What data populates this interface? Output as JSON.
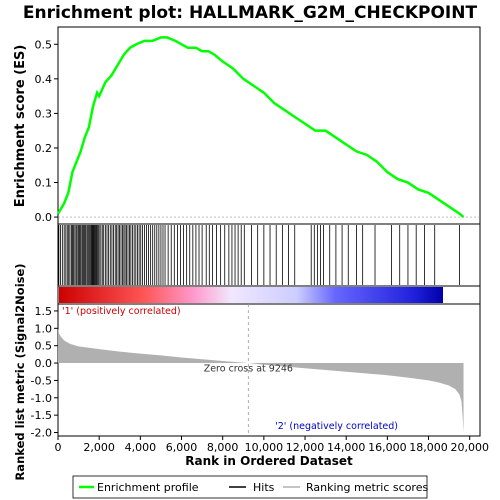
{
  "chart_data": {
    "type": "line",
    "title": "Enrichment plot: HALLMARK_G2M_CHECKPOINT",
    "es_panel": {
      "ylabel": "Enrichment score (ES)",
      "ylim": [
        -0.02,
        0.55
      ],
      "yticks": [
        "0.0",
        "0.1",
        "0.2",
        "0.3",
        "0.4",
        "0.5"
      ],
      "ytick_values": [
        0.0,
        0.1,
        0.2,
        0.3,
        0.4,
        0.5
      ],
      "line_color": "#00ff00",
      "x": [
        0,
        100,
        300,
        500,
        700,
        900,
        1100,
        1300,
        1500,
        1700,
        1900,
        2000,
        2300,
        2600,
        2900,
        3200,
        3500,
        3800,
        4200,
        4600,
        5000,
        5300,
        5700,
        6000,
        6300,
        6700,
        7000,
        7300,
        7600,
        8000,
        8500,
        9000,
        9500,
        10000,
        10500,
        11000,
        11500,
        12000,
        12500,
        13000,
        13500,
        14000,
        14500,
        15000,
        15500,
        16000,
        16500,
        17000,
        17500,
        18000,
        18500,
        19000,
        19500,
        19700
      ],
      "y": [
        0.01,
        0.02,
        0.04,
        0.07,
        0.13,
        0.16,
        0.19,
        0.23,
        0.26,
        0.32,
        0.36,
        0.35,
        0.39,
        0.41,
        0.44,
        0.47,
        0.49,
        0.5,
        0.51,
        0.51,
        0.52,
        0.52,
        0.51,
        0.5,
        0.49,
        0.49,
        0.48,
        0.48,
        0.47,
        0.45,
        0.43,
        0.4,
        0.38,
        0.36,
        0.33,
        0.31,
        0.29,
        0.27,
        0.25,
        0.25,
        0.23,
        0.21,
        0.19,
        0.18,
        0.16,
        0.13,
        0.11,
        0.1,
        0.08,
        0.07,
        0.05,
        0.03,
        0.01,
        0.0
      ]
    },
    "hits_panel": {
      "hit_positions": [
        40,
        120,
        210,
        300,
        380,
        450,
        520,
        580,
        650,
        700,
        760,
        820,
        880,
        930,
        990,
        1040,
        1100,
        1160,
        1210,
        1260,
        1310,
        1360,
        1420,
        1470,
        1520,
        1570,
        1620,
        1660,
        1700,
        1740,
        1780,
        1820,
        1860,
        1900,
        1950,
        2000,
        2080,
        2150,
        2220,
        2300,
        2380,
        2460,
        2540,
        2620,
        2700,
        2780,
        2850,
        2920,
        2990,
        3060,
        3130,
        3200,
        3260,
        3330,
        3400,
        3470,
        3540,
        3620,
        3700,
        3780,
        3860,
        3940,
        4020,
        4100,
        4200,
        4300,
        4400,
        4500,
        4600,
        4700,
        4800,
        4900,
        5000,
        5100,
        5200,
        5350,
        5500,
        5650,
        5800,
        5950,
        6100,
        6250,
        6400,
        6550,
        6700,
        6850,
        7000,
        7200,
        7350,
        7500,
        7700,
        7900,
        8100,
        8300,
        8450,
        8600,
        8750,
        8900,
        9050,
        9400,
        9700,
        10000,
        10300,
        10600,
        10900,
        11200,
        11500,
        12300,
        12450,
        12600,
        12750,
        12900,
        13200,
        13500,
        13800,
        14100,
        14500,
        14800,
        15400,
        16200,
        16600,
        17000,
        17400,
        17800,
        18300,
        19500
      ]
    },
    "rank_panel": {
      "ylabel": "Ranked list metric (Signal2Noise)",
      "ylim": [
        -2.1,
        1.7
      ],
      "yticks": [
        "-2.0",
        "-1.5",
        "-1.0",
        "-0.5",
        "0.0",
        "0.5",
        "1.0",
        "1.5"
      ],
      "ytick_values": [
        -2.0,
        -1.5,
        -1.0,
        -0.5,
        0.0,
        0.5,
        1.0,
        1.5
      ],
      "x": [
        0,
        50,
        150,
        300,
        600,
        1000,
        2000,
        3000,
        4000,
        5000,
        6000,
        7000,
        8000,
        9246,
        10000,
        11000,
        12000,
        13000,
        14000,
        15000,
        16000,
        17000,
        18000,
        18500,
        19000,
        19300,
        19500,
        19600,
        19650,
        19700
      ],
      "y": [
        1.0,
        0.85,
        0.75,
        0.65,
        0.55,
        0.48,
        0.4,
        0.33,
        0.27,
        0.22,
        0.16,
        0.11,
        0.06,
        0.0,
        -0.05,
        -0.1,
        -0.15,
        -0.2,
        -0.25,
        -0.3,
        -0.35,
        -0.42,
        -0.5,
        -0.56,
        -0.65,
        -0.75,
        -0.9,
        -1.1,
        -1.5,
        -2.0
      ],
      "fill_color": "#b0b0b0",
      "zero_cross_label": "Zero cross at 9246",
      "zero_cross_x": 9246,
      "positive_label": "'1' (positively correlated)",
      "negative_label": "'2' (negatively correlated)",
      "positive_color": "#cc0000",
      "negative_color": "#0000cc"
    },
    "xlabel": "Rank in Ordered Dataset",
    "xlim": [
      0,
      20500
    ],
    "xticks": [
      "0",
      "2,000",
      "4,000",
      "6,000",
      "8,000",
      "10,000",
      "12,000",
      "14,000",
      "16,000",
      "18,000",
      "20,000"
    ],
    "xtick_values": [
      0,
      2000,
      4000,
      6000,
      8000,
      10000,
      12000,
      14000,
      16000,
      18000,
      20000
    ],
    "legend": [
      {
        "label": "Enrichment profile",
        "color": "#00ff00"
      },
      {
        "label": "Hits",
        "color": "#000000"
      },
      {
        "label": "Ranking metric scores",
        "color": "#b0b0b0"
      }
    ],
    "legend_position": "bottom"
  }
}
